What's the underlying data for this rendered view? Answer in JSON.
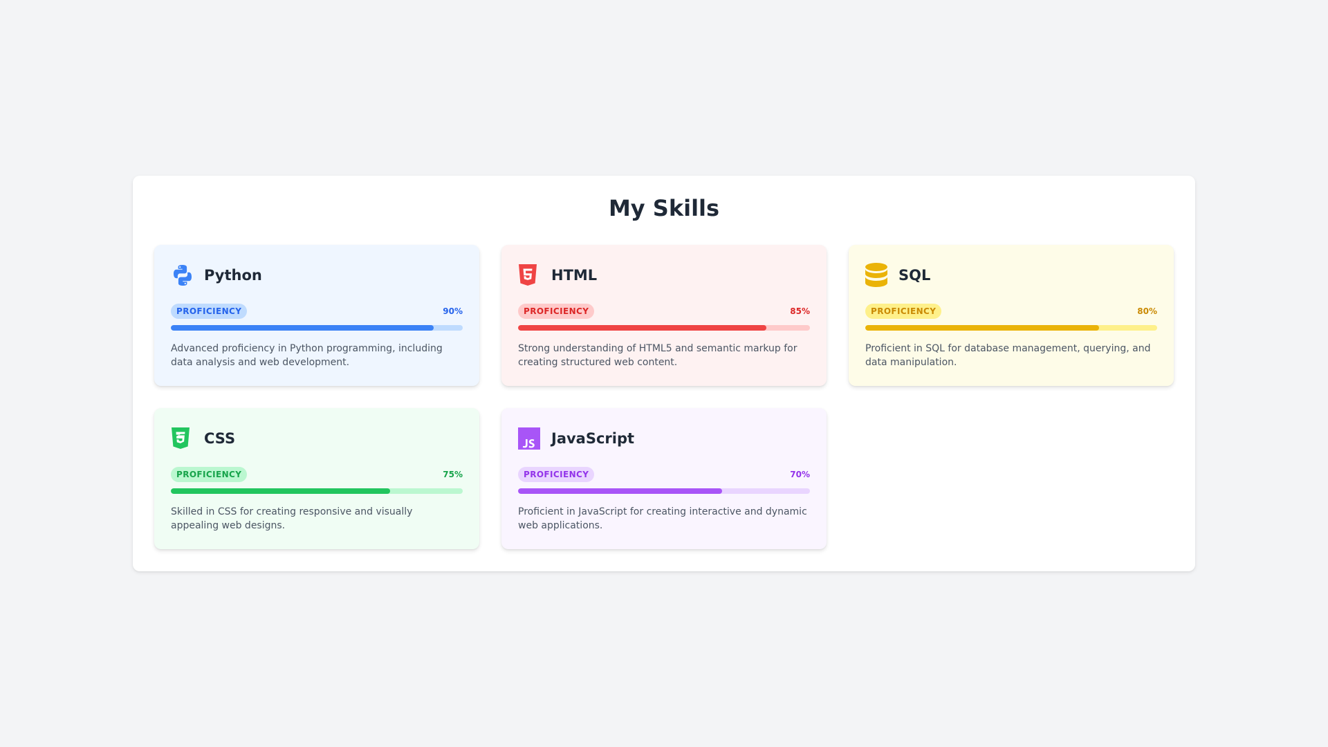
{
  "page": {
    "title": "My Skills"
  },
  "skills": [
    {
      "name": "Python",
      "icon": "python-icon",
      "badge": "PROFICIENCY",
      "percent_label": "90%",
      "level": 0.9,
      "description": "Advanced proficiency in Python programming, including data analysis and web development.",
      "colors": {
        "bg": "#eff6ff",
        "accent": "#3b82f6",
        "track": "#bfdbfe",
        "badge_bg": "#bfdbfe",
        "text": "#2563eb"
      }
    },
    {
      "name": "HTML",
      "icon": "html5-icon",
      "badge": "PROFICIENCY",
      "percent_label": "85%",
      "level": 0.85,
      "description": "Strong understanding of HTML5 and semantic markup for creating structured web content.",
      "colors": {
        "bg": "#fef2f2",
        "accent": "#ef4444",
        "track": "#fecaca",
        "badge_bg": "#fecaca",
        "text": "#dc2626"
      }
    },
    {
      "name": "SQL",
      "icon": "database-icon",
      "badge": "PROFICIENCY",
      "percent_label": "80%",
      "level": 0.8,
      "description": "Proficient in SQL for database management, querying, and data manipulation.",
      "colors": {
        "bg": "#fefce8",
        "accent": "#eab308",
        "track": "#fef08a",
        "badge_bg": "#fef08a",
        "text": "#ca8a04"
      }
    },
    {
      "name": "CSS",
      "icon": "css3-icon",
      "badge": "PROFICIENCY",
      "percent_label": "75%",
      "level": 0.75,
      "description": "Skilled in CSS for creating responsive and visually appealing web designs.",
      "colors": {
        "bg": "#f0fdf4",
        "accent": "#22c55e",
        "track": "#bbf7d0",
        "badge_bg": "#bbf7d0",
        "text": "#16a34a"
      }
    },
    {
      "name": "JavaScript",
      "icon": "javascript-icon",
      "badge": "PROFICIENCY",
      "percent_label": "70%",
      "level": 0.7,
      "description": "Proficient in JavaScript for creating interactive and dynamic web applications.",
      "colors": {
        "bg": "#faf5ff",
        "accent": "#a855f7",
        "track": "#e9d5ff",
        "badge_bg": "#e9d5ff",
        "text": "#9333ea"
      }
    }
  ]
}
